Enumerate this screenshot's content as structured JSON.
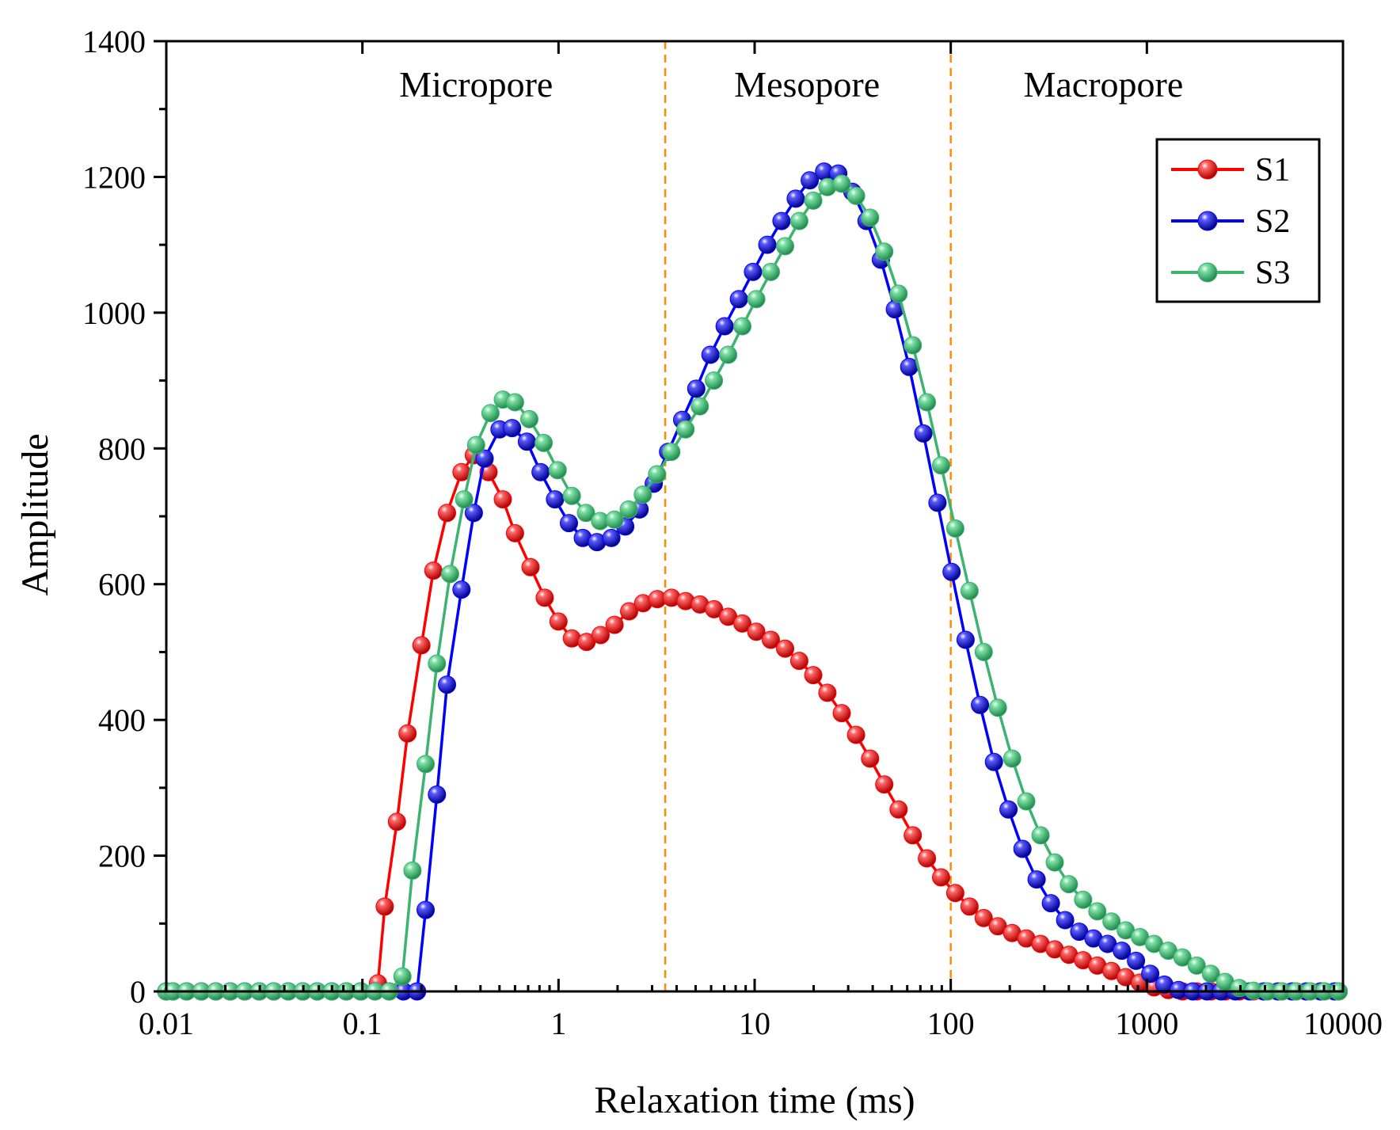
{
  "chart_data": {
    "type": "line",
    "title": "",
    "xlabel": "Relaxation time (ms)",
    "ylabel": "Amplitude",
    "xscale": "log",
    "xlim": [
      0.01,
      10000
    ],
    "ylim": [
      0,
      1400
    ],
    "xticks": [
      0.01,
      0.1,
      1,
      10,
      100,
      1000,
      10000
    ],
    "xtick_labels": [
      "0.01",
      "0.1",
      "1",
      "10",
      "100",
      "1000",
      "10000"
    ],
    "yticks": [
      0,
      200,
      400,
      600,
      800,
      1000,
      1200,
      1400
    ],
    "ytick_labels": [
      "0",
      "200",
      "400",
      "600",
      "800",
      "1000",
      "1200",
      "1400"
    ],
    "grid": false,
    "legend_position": "top-right",
    "dividers": [
      {
        "x": 3.5,
        "color": "#ff8c00"
      },
      {
        "x": 100,
        "color": "#ff8c00"
      }
    ],
    "regions": [
      {
        "label": "Micropore",
        "x": 0.38
      },
      {
        "label": "Mesopore",
        "x": 18.5
      },
      {
        "label": "Macropore",
        "x": 600
      }
    ],
    "series": [
      {
        "name": "S1",
        "color": "#ff0000",
        "points": [
          [
            0.01,
            0
          ],
          [
            0.0108,
            0
          ],
          [
            0.0127,
            0
          ],
          [
            0.0151,
            0
          ],
          [
            0.0179,
            0
          ],
          [
            0.0212,
            0
          ],
          [
            0.0251,
            0
          ],
          [
            0.0298,
            0
          ],
          [
            0.0353,
            0
          ],
          [
            0.0419,
            0
          ],
          [
            0.0497,
            0
          ],
          [
            0.0589,
            0
          ],
          [
            0.0698,
            0
          ],
          [
            0.0828,
            0
          ],
          [
            0.0982,
            0
          ],
          [
            0.12,
            12
          ],
          [
            0.13,
            125
          ],
          [
            0.15,
            250
          ],
          [
            0.17,
            380
          ],
          [
            0.2,
            510
          ],
          [
            0.23,
            620
          ],
          [
            0.27,
            705
          ],
          [
            0.32,
            765
          ],
          [
            0.37,
            790
          ],
          [
            0.44,
            765
          ],
          [
            0.52,
            725
          ],
          [
            0.6,
            675
          ],
          [
            0.72,
            625
          ],
          [
            0.85,
            580
          ],
          [
            1.0,
            545
          ],
          [
            1.17,
            520
          ],
          [
            1.39,
            515
          ],
          [
            1.64,
            525
          ],
          [
            1.93,
            540
          ],
          [
            2.29,
            560
          ],
          [
            2.7,
            572
          ],
          [
            3.19,
            578
          ],
          [
            3.77,
            580
          ],
          [
            4.45,
            575
          ],
          [
            5.26,
            570
          ],
          [
            6.21,
            563
          ],
          [
            7.33,
            552
          ],
          [
            8.66,
            542
          ],
          [
            10.2,
            530
          ],
          [
            12.1,
            518
          ],
          [
            14.3,
            505
          ],
          [
            16.9,
            487
          ],
          [
            19.9,
            466
          ],
          [
            23.5,
            440
          ],
          [
            27.8,
            410
          ],
          [
            32.9,
            378
          ],
          [
            38.8,
            343
          ],
          [
            45.8,
            305
          ],
          [
            54.2,
            268
          ],
          [
            64.0,
            230
          ],
          [
            75.6,
            196
          ],
          [
            89.3,
            168
          ],
          [
            105.5,
            145
          ],
          [
            124.7,
            125
          ],
          [
            147.3,
            108
          ],
          [
            174.0,
            96
          ],
          [
            205.6,
            86
          ],
          [
            242.9,
            78
          ],
          [
            287.0,
            70
          ],
          [
            339.0,
            62
          ],
          [
            400.5,
            54
          ],
          [
            473.1,
            46
          ],
          [
            559.0,
            38
          ],
          [
            660.4,
            30
          ],
          [
            780.1,
            21
          ],
          [
            921.6,
            13
          ],
          [
            1088.8,
            6
          ],
          [
            1286.3,
            2
          ],
          [
            1519.6,
            0
          ],
          [
            1795.3,
            0
          ],
          [
            2121.0,
            0
          ],
          [
            2505.6,
            0
          ],
          [
            2960.3,
            0
          ],
          [
            3497.2,
            0
          ],
          [
            4131.5,
            0
          ],
          [
            4880.9,
            0
          ],
          [
            5766.3,
            0
          ],
          [
            6812.1,
            0
          ],
          [
            8047.7,
            0
          ],
          [
            9507.6,
            0
          ]
        ]
      },
      {
        "name": "S2",
        "color": "#0000ff",
        "points": [
          [
            0.01,
            0
          ],
          [
            0.0108,
            0
          ],
          [
            0.0127,
            0
          ],
          [
            0.0151,
            0
          ],
          [
            0.0179,
            0
          ],
          [
            0.0212,
            0
          ],
          [
            0.0251,
            0
          ],
          [
            0.0298,
            0
          ],
          [
            0.0353,
            0
          ],
          [
            0.0419,
            0
          ],
          [
            0.0497,
            0
          ],
          [
            0.0589,
            0
          ],
          [
            0.0698,
            0
          ],
          [
            0.0828,
            0
          ],
          [
            0.0982,
            0
          ],
          [
            0.116,
            0
          ],
          [
            0.137,
            0
          ],
          [
            0.162,
            0
          ],
          [
            0.19,
            0
          ],
          [
            0.21,
            120
          ],
          [
            0.24,
            290
          ],
          [
            0.27,
            452
          ],
          [
            0.32,
            592
          ],
          [
            0.37,
            705
          ],
          [
            0.42,
            785
          ],
          [
            0.5,
            828
          ],
          [
            0.58,
            830
          ],
          [
            0.69,
            810
          ],
          [
            0.81,
            765
          ],
          [
            0.96,
            725
          ],
          [
            1.13,
            690
          ],
          [
            1.33,
            668
          ],
          [
            1.57,
            662
          ],
          [
            1.86,
            668
          ],
          [
            2.19,
            685
          ],
          [
            2.59,
            710
          ],
          [
            3.06,
            748
          ],
          [
            3.62,
            795
          ],
          [
            4.27,
            842
          ],
          [
            5.04,
            888
          ],
          [
            5.95,
            938
          ],
          [
            7.03,
            980
          ],
          [
            8.31,
            1020
          ],
          [
            9.81,
            1060
          ],
          [
            11.6,
            1100
          ],
          [
            13.7,
            1135
          ],
          [
            16.2,
            1168
          ],
          [
            19.1,
            1195
          ],
          [
            22.6,
            1208
          ],
          [
            26.7,
            1205
          ],
          [
            31.5,
            1178
          ],
          [
            37.2,
            1135
          ],
          [
            44.0,
            1078
          ],
          [
            51.9,
            1005
          ],
          [
            61.4,
            920
          ],
          [
            72.5,
            822
          ],
          [
            85.6,
            720
          ],
          [
            101,
            618
          ],
          [
            119,
            518
          ],
          [
            141,
            422
          ],
          [
            166,
            338
          ],
          [
            197,
            268
          ],
          [
            232,
            210
          ],
          [
            274,
            165
          ],
          [
            324,
            130
          ],
          [
            383,
            105
          ],
          [
            452,
            88
          ],
          [
            534,
            78
          ],
          [
            631,
            70
          ],
          [
            745,
            60
          ],
          [
            880,
            45
          ],
          [
            1040,
            26
          ],
          [
            1228,
            10
          ],
          [
            1451,
            2
          ],
          [
            1714,
            0
          ],
          [
            2024,
            0
          ],
          [
            2391,
            0
          ],
          [
            2825,
            0
          ],
          [
            3337,
            0
          ],
          [
            3942,
            0
          ],
          [
            4656,
            0
          ],
          [
            5500,
            0
          ],
          [
            6498,
            0
          ],
          [
            7676,
            0
          ],
          [
            9067,
            0
          ]
        ]
      },
      {
        "name": "S3",
        "color": "#3cb371",
        "points": [
          [
            0.01,
            0
          ],
          [
            0.0108,
            0
          ],
          [
            0.0127,
            0
          ],
          [
            0.0151,
            0
          ],
          [
            0.0179,
            0
          ],
          [
            0.0212,
            0
          ],
          [
            0.0251,
            0
          ],
          [
            0.0298,
            0
          ],
          [
            0.0353,
            0
          ],
          [
            0.0419,
            0
          ],
          [
            0.0497,
            0
          ],
          [
            0.0589,
            0
          ],
          [
            0.0698,
            0
          ],
          [
            0.0828,
            0
          ],
          [
            0.0982,
            0
          ],
          [
            0.116,
            0
          ],
          [
            0.137,
            0
          ],
          [
            0.16,
            22
          ],
          [
            0.18,
            178
          ],
          [
            0.21,
            335
          ],
          [
            0.24,
            483
          ],
          [
            0.28,
            615
          ],
          [
            0.33,
            725
          ],
          [
            0.38,
            805
          ],
          [
            0.45,
            852
          ],
          [
            0.52,
            872
          ],
          [
            0.6,
            868
          ],
          [
            0.71,
            843
          ],
          [
            0.84,
            808
          ],
          [
            0.99,
            768
          ],
          [
            1.17,
            730
          ],
          [
            1.38,
            705
          ],
          [
            1.63,
            693
          ],
          [
            1.93,
            695
          ],
          [
            2.28,
            710
          ],
          [
            2.69,
            732
          ],
          [
            3.18,
            762
          ],
          [
            3.76,
            795
          ],
          [
            4.44,
            828
          ],
          [
            5.25,
            862
          ],
          [
            6.2,
            900
          ],
          [
            7.33,
            938
          ],
          [
            8.66,
            980
          ],
          [
            10.2,
            1020
          ],
          [
            12.1,
            1060
          ],
          [
            14.3,
            1098
          ],
          [
            16.9,
            1135
          ],
          [
            19.9,
            1165
          ],
          [
            23.5,
            1185
          ],
          [
            27.8,
            1190
          ],
          [
            32.9,
            1172
          ],
          [
            38.8,
            1140
          ],
          [
            45.8,
            1090
          ],
          [
            54.2,
            1028
          ],
          [
            64.0,
            952
          ],
          [
            75.6,
            868
          ],
          [
            89.3,
            775
          ],
          [
            105.5,
            682
          ],
          [
            124.7,
            590
          ],
          [
            147.3,
            500
          ],
          [
            174.0,
            418
          ],
          [
            205.6,
            343
          ],
          [
            242.9,
            280
          ],
          [
            287.0,
            230
          ],
          [
            339.0,
            190
          ],
          [
            400.5,
            158
          ],
          [
            473.1,
            135
          ],
          [
            559.0,
            118
          ],
          [
            660.4,
            103
          ],
          [
            780.1,
            90
          ],
          [
            921.6,
            80
          ],
          [
            1088.8,
            70
          ],
          [
            1286.3,
            60
          ],
          [
            1519.6,
            50
          ],
          [
            1795.3,
            38
          ],
          [
            2121.0,
            26
          ],
          [
            2505.6,
            14
          ],
          [
            2960.3,
            5
          ],
          [
            3497.2,
            1
          ],
          [
            4131.5,
            0
          ],
          [
            4880.9,
            0
          ],
          [
            5766.3,
            0
          ],
          [
            6812.1,
            0
          ],
          [
            8047.7,
            0
          ],
          [
            9507.6,
            0
          ]
        ]
      }
    ]
  }
}
